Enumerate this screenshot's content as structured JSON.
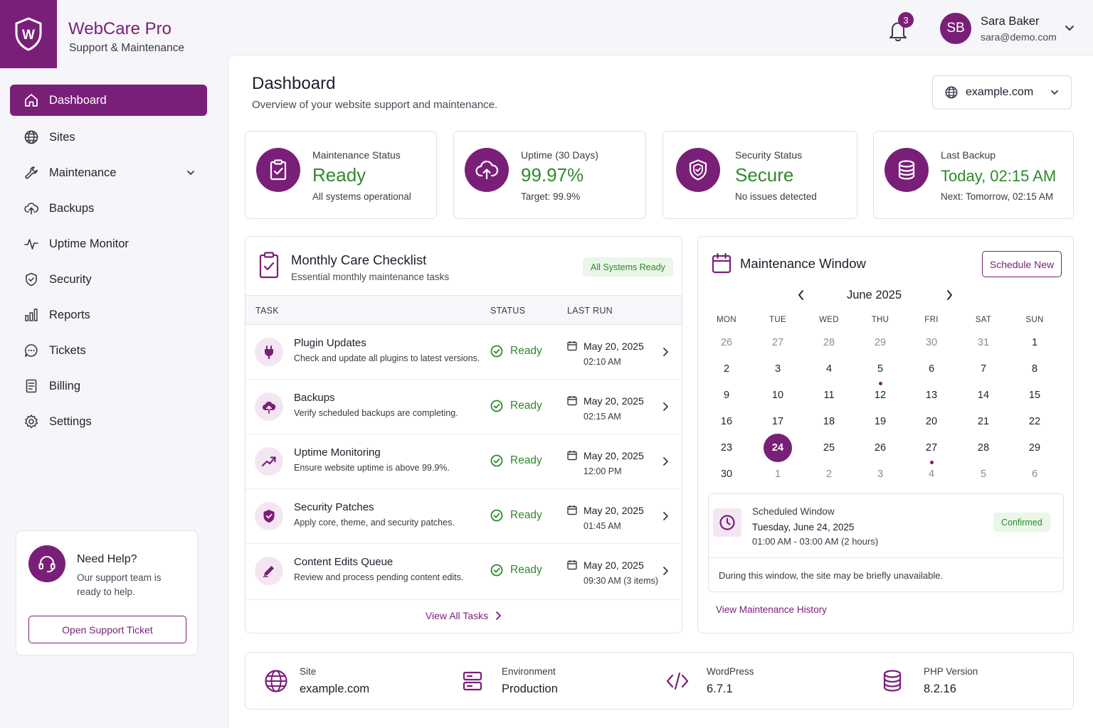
{
  "app": {
    "name": "WebCare Pro",
    "tagline": "Support & Maintenance",
    "logo_letter": "W"
  },
  "header": {
    "notifications_count": "3",
    "user": {
      "initials": "SB",
      "name": "Sara Baker",
      "email": "sara@demo.com"
    }
  },
  "sidebar": {
    "items": [
      {
        "label": "Dashboard",
        "icon": "home-icon",
        "active": true
      },
      {
        "label": "Sites",
        "icon": "globe-icon"
      },
      {
        "label": "Maintenance",
        "icon": "wrench-icon",
        "has_children": true
      },
      {
        "label": "Backups",
        "icon": "cloud-upload-icon"
      },
      {
        "label": "Uptime Monitor",
        "icon": "pulse-icon"
      },
      {
        "label": "Security",
        "icon": "shield-icon"
      },
      {
        "label": "Reports",
        "icon": "bar-chart-icon"
      },
      {
        "label": "Tickets",
        "icon": "chat-icon"
      },
      {
        "label": "Billing",
        "icon": "document-icon"
      },
      {
        "label": "Settings",
        "icon": "gear-icon"
      }
    ],
    "help": {
      "title": "Need Help?",
      "text": "Our support team is ready to help.",
      "button": "Open Support Ticket"
    }
  },
  "page": {
    "title": "Dashboard",
    "subtitle": "Overview of your website support and maintenance.",
    "site_selector": "example.com"
  },
  "stats": [
    {
      "label": "Maintenance Status",
      "value": "Ready",
      "note": "All systems operational",
      "icon": "clipboard-check-icon"
    },
    {
      "label": "Uptime (30 Days)",
      "value": "99.97%",
      "note": "Target: 99.9%",
      "icon": "cloud-upload-icon"
    },
    {
      "label": "Security Status",
      "value": "Secure",
      "note": "No issues detected",
      "icon": "shield-check-icon"
    },
    {
      "label": "Last Backup",
      "value": "Today, 02:15 AM",
      "note": "Next: Tomorrow, 02:15 AM",
      "icon": "database-icon"
    }
  ],
  "checklist": {
    "title": "Monthly Care Checklist",
    "subtitle": "Essential monthly maintenance tasks",
    "badge": "All Systems Ready",
    "columns": {
      "task": "TASK",
      "status": "STATUS",
      "last_run": "LAST RUN"
    },
    "rows": [
      {
        "name": "Plugin Updates",
        "desc": "Check and update all plugins to latest versions.",
        "status": "Ready",
        "date": "May 20, 2025",
        "time": "02:10 AM",
        "icon": "plug-icon"
      },
      {
        "name": "Backups",
        "desc": "Verify scheduled backups are completing.",
        "status": "Ready",
        "date": "May 20, 2025",
        "time": "02:15 AM",
        "icon": "cloud-upload-icon"
      },
      {
        "name": "Uptime Monitoring",
        "desc": "Ensure website uptime is above 99.9%.",
        "status": "Ready",
        "date": "May 20, 2025",
        "time": "12:00 PM",
        "icon": "trend-up-icon"
      },
      {
        "name": "Security Patches",
        "desc": "Apply core, theme, and security patches.",
        "status": "Ready",
        "date": "May 20, 2025",
        "time": "01:45 AM",
        "icon": "shield-check-icon"
      },
      {
        "name": "Content Edits Queue",
        "desc": "Review and process pending content edits.",
        "status": "Ready",
        "date": "May 20, 2025",
        "time": "09:30 AM (3 items)",
        "icon": "pencil-icon"
      }
    ],
    "view_all": "View All Tasks"
  },
  "maintenance": {
    "title": "Maintenance Window",
    "schedule_button": "Schedule New",
    "month": "June 2025",
    "weekdays": [
      "MON",
      "TUE",
      "WED",
      "THU",
      "FRI",
      "SAT",
      "SUN"
    ],
    "weeks": [
      [
        {
          "d": "26",
          "m": true
        },
        {
          "d": "27",
          "m": true
        },
        {
          "d": "28",
          "m": true
        },
        {
          "d": "29",
          "m": true
        },
        {
          "d": "30",
          "m": true
        },
        {
          "d": "31",
          "m": true
        },
        {
          "d": "1"
        }
      ],
      [
        {
          "d": "2"
        },
        {
          "d": "3"
        },
        {
          "d": "4"
        },
        {
          "d": "5",
          "dot": true
        },
        {
          "d": "6"
        },
        {
          "d": "7"
        },
        {
          "d": "8"
        }
      ],
      [
        {
          "d": "9"
        },
        {
          "d": "10"
        },
        {
          "d": "11"
        },
        {
          "d": "12"
        },
        {
          "d": "13"
        },
        {
          "d": "14"
        },
        {
          "d": "15"
        }
      ],
      [
        {
          "d": "16"
        },
        {
          "d": "17"
        },
        {
          "d": "18"
        },
        {
          "d": "19"
        },
        {
          "d": "20"
        },
        {
          "d": "21"
        },
        {
          "d": "22"
        }
      ],
      [
        {
          "d": "23"
        },
        {
          "d": "24",
          "sel": true
        },
        {
          "d": "25"
        },
        {
          "d": "26"
        },
        {
          "d": "27",
          "dot": true
        },
        {
          "d": "28"
        },
        {
          "d": "29"
        }
      ],
      [
        {
          "d": "30"
        },
        {
          "d": "1",
          "m": true
        },
        {
          "d": "2",
          "m": true
        },
        {
          "d": "3",
          "m": true
        },
        {
          "d": "4",
          "m": true
        },
        {
          "d": "5",
          "m": true
        },
        {
          "d": "6",
          "m": true
        }
      ]
    ],
    "scheduled": {
      "label": "Scheduled Window",
      "date": "Tuesday, June 24, 2025",
      "time": "01:00 AM - 03:00 AM (2 hours)",
      "badge": "Confirmed",
      "note": "During this window, the site may be briefly unavailable."
    },
    "history_link": "View Maintenance History"
  },
  "info": [
    {
      "label": "Site",
      "value": "example.com",
      "icon": "globe-icon"
    },
    {
      "label": "Environment",
      "value": "Production",
      "icon": "server-icon"
    },
    {
      "label": "WordPress",
      "value": "6.7.1",
      "icon": "code-icon"
    },
    {
      "label": "PHP Version",
      "value": "8.2.16",
      "icon": "database-icon"
    }
  ],
  "colors": {
    "brand": "#7a1f78",
    "success": "#2e8a2b",
    "tint": "#f3e6f2"
  }
}
